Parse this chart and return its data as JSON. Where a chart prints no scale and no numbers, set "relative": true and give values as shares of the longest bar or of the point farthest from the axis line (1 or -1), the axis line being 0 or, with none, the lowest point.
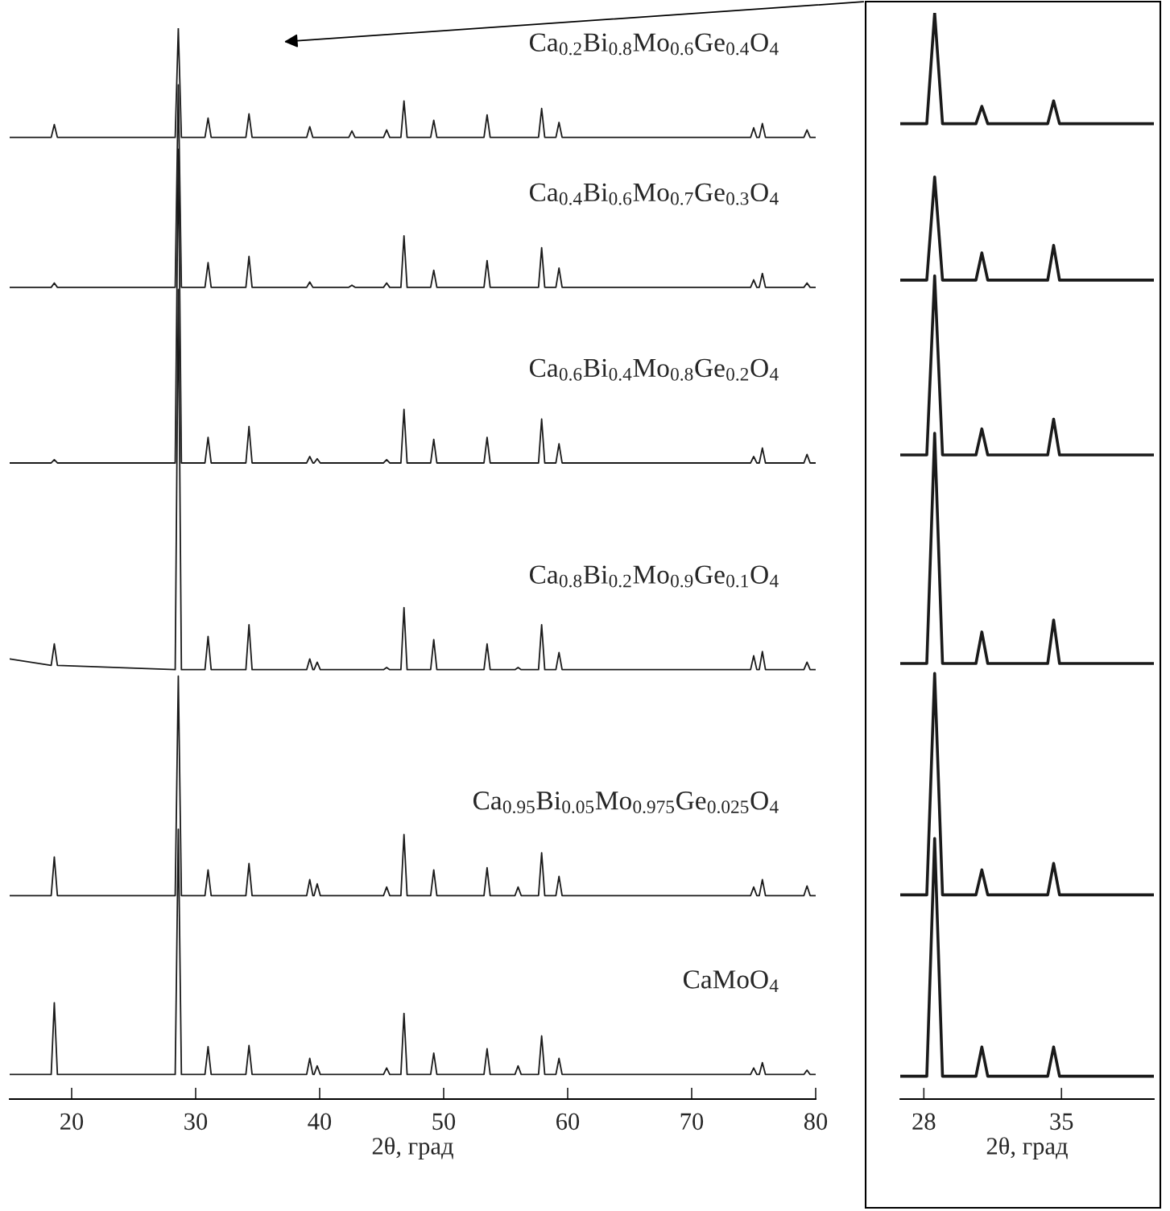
{
  "chart_data": [
    {
      "type": "line",
      "relative": true,
      "xlabel": "2θ, град",
      "xlim": [
        15,
        80
      ],
      "xticks": [
        20,
        30,
        40,
        50,
        60,
        70,
        80
      ],
      "tick_labels": "x",
      "grid": false,
      "legend": false,
      "marker": "none",
      "line_style": "solid",
      "x": [
        15,
        18.35,
        18.6,
        18.85,
        28.35,
        28.6,
        28.85,
        30.75,
        31.0,
        31.25,
        34.05,
        34.3,
        34.55,
        38.95,
        39.2,
        39.45,
        39.55,
        39.8,
        40.05,
        42.35,
        42.6,
        42.85,
        45.15,
        45.4,
        45.65,
        46.55,
        46.8,
        47.05,
        48.95,
        49.2,
        49.45,
        53.25,
        53.5,
        53.75,
        55.75,
        56.0,
        56.25,
        57.65,
        57.9,
        58.15,
        59.05,
        59.3,
        59.55,
        74.75,
        75.0,
        75.25,
        75.45,
        75.7,
        75.95,
        79.05,
        79.3,
        79.55,
        80
      ],
      "series": [
        {
          "name": "Ca$_{0.2}$Bi$_{0.8}$Mo$_{0.6}$Ge$_{0.4}$O$_{4}$",
          "color": "#1a1a1a",
          "values": [
            0.898,
            0.898,
            0.91,
            0.898,
            0.898,
            1.0,
            0.898,
            0.898,
            0.916,
            0.898,
            0.898,
            0.92,
            0.898,
            0.898,
            0.908,
            0.898,
            0.898,
            0.898,
            0.898,
            0.898,
            0.904,
            0.898,
            0.898,
            0.905,
            0.898,
            0.898,
            0.932,
            0.898,
            0.898,
            0.914,
            0.898,
            0.898,
            0.919,
            0.898,
            0.898,
            0.898,
            0.898,
            0.898,
            0.925,
            0.898,
            0.898,
            0.912,
            0.898,
            0.898,
            0.907,
            0.898,
            0.898,
            0.911,
            0.898,
            0.898,
            0.905,
            0.898,
            0.898
          ]
        },
        {
          "name": "Ca$_{0.4}$Bi$_{0.6}$Mo$_{0.7}$Ge$_{0.3}$O$_{4}$",
          "color": "#1a1a1a",
          "values": [
            0.758,
            0.758,
            0.762,
            0.758,
            0.758,
            0.947,
            0.758,
            0.758,
            0.781,
            0.758,
            0.758,
            0.787,
            0.758,
            0.758,
            0.763,
            0.758,
            0.758,
            0.758,
            0.758,
            0.758,
            0.76,
            0.758,
            0.758,
            0.762,
            0.758,
            0.758,
            0.806,
            0.758,
            0.758,
            0.774,
            0.758,
            0.758,
            0.783,
            0.758,
            0.758,
            0.758,
            0.758,
            0.758,
            0.795,
            0.758,
            0.758,
            0.776,
            0.758,
            0.758,
            0.765,
            0.758,
            0.758,
            0.771,
            0.758,
            0.758,
            0.762,
            0.758,
            0.758
          ]
        },
        {
          "name": "Ca$_{0.6}$Bi$_{0.4}$Mo$_{0.8}$Ge$_{0.2}$O$_{4}$",
          "color": "#1a1a1a",
          "values": [
            0.594,
            0.594,
            0.597,
            0.594,
            0.594,
            0.887,
            0.594,
            0.594,
            0.618,
            0.594,
            0.594,
            0.628,
            0.594,
            0.594,
            0.6,
            0.594,
            0.594,
            0.598,
            0.594,
            0.594,
            0.594,
            0.594,
            0.594,
            0.597,
            0.594,
            0.594,
            0.644,
            0.594,
            0.594,
            0.616,
            0.594,
            0.594,
            0.618,
            0.594,
            0.594,
            0.594,
            0.594,
            0.594,
            0.635,
            0.594,
            0.594,
            0.612,
            0.594,
            0.594,
            0.6,
            0.594,
            0.594,
            0.608,
            0.594,
            0.594,
            0.602,
            0.594,
            0.594
          ]
        },
        {
          "name": "Ca$_{0.8}$Bi$_{0.2}$Mo$_{0.9}$Ge$_{0.1}$O$_{4}$",
          "color": "#1a1a1a",
          "values": [
            0.411,
            0.405,
            0.425,
            0.405,
            0.401,
            0.756,
            0.401,
            0.401,
            0.432,
            0.401,
            0.401,
            0.443,
            0.401,
            0.401,
            0.411,
            0.401,
            0.401,
            0.408,
            0.401,
            0.401,
            0.401,
            0.401,
            0.401,
            0.403,
            0.401,
            0.401,
            0.459,
            0.401,
            0.401,
            0.429,
            0.401,
            0.401,
            0.425,
            0.401,
            0.401,
            0.403,
            0.401,
            0.401,
            0.443,
            0.401,
            0.401,
            0.417,
            0.401,
            0.401,
            0.414,
            0.401,
            0.401,
            0.418,
            0.401,
            0.401,
            0.408,
            0.401,
            0.401
          ]
        },
        {
          "name": "Ca$_{0.95}$Bi$_{0.05}$Mo$_{0.975}$Ge$_{0.025}$O$_{4}$",
          "color": "#1a1a1a",
          "values": [
            0.19,
            0.19,
            0.226,
            0.19,
            0.19,
            0.395,
            0.19,
            0.19,
            0.214,
            0.19,
            0.19,
            0.22,
            0.19,
            0.19,
            0.205,
            0.19,
            0.19,
            0.201,
            0.19,
            0.19,
            0.19,
            0.19,
            0.19,
            0.198,
            0.19,
            0.19,
            0.247,
            0.19,
            0.19,
            0.214,
            0.19,
            0.19,
            0.216,
            0.19,
            0.19,
            0.198,
            0.19,
            0.19,
            0.23,
            0.19,
            0.19,
            0.208,
            0.19,
            0.19,
            0.198,
            0.19,
            0.19,
            0.205,
            0.19,
            0.19,
            0.199,
            0.19,
            0.19
          ]
        },
        {
          "name": "CaMoO$_{4}$",
          "color": "#1a1a1a",
          "values": [
            0.023,
            0.023,
            0.09,
            0.023,
            0.023,
            0.252,
            0.023,
            0.023,
            0.049,
            0.023,
            0.023,
            0.05,
            0.023,
            0.023,
            0.038,
            0.023,
            0.023,
            0.031,
            0.023,
            0.023,
            0.023,
            0.023,
            0.023,
            0.029,
            0.023,
            0.023,
            0.08,
            0.023,
            0.023,
            0.043,
            0.023,
            0.023,
            0.047,
            0.023,
            0.023,
            0.031,
            0.023,
            0.023,
            0.059,
            0.023,
            0.023,
            0.038,
            0.023,
            0.023,
            0.029,
            0.023,
            0.023,
            0.034,
            0.023,
            0.023,
            0.027,
            0.023,
            0.023
          ]
        }
      ]
    },
    {
      "type": "line",
      "relative": true,
      "xlabel": "2θ, град",
      "xlim": [
        26.8,
        39.7
      ],
      "xticks": [
        28,
        35
      ],
      "tick_labels": "x",
      "grid": false,
      "legend": false,
      "marker": "none",
      "line_style": "solid",
      "x": [
        26.8,
        28.15,
        28.55,
        28.95,
        30.65,
        30.95,
        31.25,
        34.3,
        34.6,
        34.9,
        39.7
      ],
      "series": [
        {
          "color": "#1a1a1a",
          "values": [
            0.898,
            0.898,
            1.0,
            0.898,
            0.898,
            0.914,
            0.898,
            0.898,
            0.919,
            0.898,
            0.898
          ]
        },
        {
          "color": "#1a1a1a",
          "values": [
            0.754,
            0.754,
            0.849,
            0.754,
            0.754,
            0.779,
            0.754,
            0.754,
            0.786,
            0.754,
            0.754
          ]
        },
        {
          "color": "#1a1a1a",
          "values": [
            0.593,
            0.593,
            0.758,
            0.593,
            0.593,
            0.617,
            0.593,
            0.593,
            0.626,
            0.593,
            0.593
          ]
        },
        {
          "color": "#1a1a1a",
          "values": [
            0.401,
            0.401,
            0.613,
            0.401,
            0.401,
            0.43,
            0.401,
            0.401,
            0.441,
            0.401,
            0.401
          ]
        },
        {
          "color": "#1a1a1a",
          "values": [
            0.188,
            0.188,
            0.392,
            0.188,
            0.188,
            0.211,
            0.188,
            0.188,
            0.217,
            0.188,
            0.188
          ]
        },
        {
          "color": "#1a1a1a",
          "values": [
            0.021,
            0.021,
            0.24,
            0.021,
            0.021,
            0.048,
            0.021,
            0.021,
            0.048,
            0.021,
            0.021
          ]
        }
      ]
    }
  ]
}
